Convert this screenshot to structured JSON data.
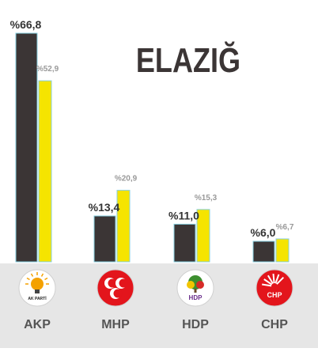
{
  "chart_data": {
    "type": "bar",
    "title": "ELAZIĞ",
    "categories": [
      "AKP",
      "MHP",
      "HDP",
      "CHP"
    ],
    "series": [
      {
        "color": "#3b3535",
        "values": [
          66.8,
          13.4,
          11.0,
          6.0
        ],
        "labels": [
          "%66,8",
          "%13,4",
          "%11,0",
          "%6,0"
        ]
      },
      {
        "color": "#f5e400",
        "values": [
          52.9,
          20.9,
          15.3,
          6.7
        ],
        "labels": [
          "%52,9",
          "%20,9",
          "%15,3",
          "%6,7"
        ]
      }
    ],
    "ylim": [
      0,
      66.8
    ],
    "grid": false,
    "logos": [
      {
        "party": "AKP",
        "icon": "akp-lightbulb-logo",
        "text": "AK PARTİ",
        "bg": "#ffffff",
        "fg": "#f4a100"
      },
      {
        "party": "MHP",
        "icon": "mhp-crescents-logo",
        "text": "",
        "bg": "#e3151c",
        "fg": "#ffffff"
      },
      {
        "party": "HDP",
        "icon": "hdp-tree-logo",
        "text": "HDP",
        "bg": "#ffffff",
        "fg": "#6b2f8c"
      },
      {
        "party": "CHP",
        "icon": "chp-six-arrows-logo",
        "text": "CHP",
        "bg": "#e3151c",
        "fg": "#ffffff"
      }
    ],
    "colors": {
      "footer_bg": "#e6e6e6",
      "title": "#3b3535",
      "category_text": "#555555",
      "primary_label": "#333333",
      "secondary_label": "#999999",
      "bar_outline": "#86cfe0"
    }
  }
}
